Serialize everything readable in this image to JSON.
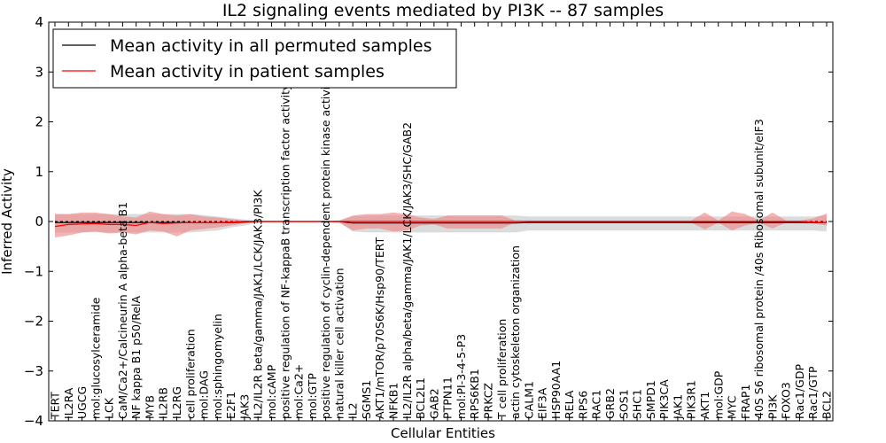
{
  "chart_data": {
    "type": "line",
    "title": "IL2 signaling events mediated by PI3K -- 87 samples",
    "xlabel": "Cellular Entities",
    "ylabel": "Inferred Activity",
    "ylim": [
      -4,
      4
    ],
    "yticks": [
      -4,
      -3,
      -2,
      -1,
      0,
      1,
      2,
      3,
      4
    ],
    "ytick_labels": [
      "−4",
      "−3",
      "−2",
      "−1",
      "0",
      "1",
      "2",
      "3",
      "4"
    ],
    "legend_position": "top-left",
    "categories": [
      "TERT",
      "IL2RA",
      "UGCG",
      "mol:glucosylceramide",
      "LCK",
      "CaM/Ca2+/Calcineurin A alpha-beta B1",
      "NF kappa B1 p50/RelA",
      "MYB",
      "IL2RB",
      "IL2RG",
      "cell proliferation",
      "mol:DAG",
      "mol:sphingomyelin",
      "E2F1",
      "JAK3",
      "IL2/IL2R beta/gamma/JAK1/LCK/JAK3/PI3K",
      "mol:cAMP",
      "positive regulation of NF-kappaB transcription factor activity",
      "mol:Ca2+",
      "mol:GTP",
      "positive regulation of cyclin-dependent protein kinase activity",
      "natural killer cell activation",
      "IL2",
      "SGMS1",
      "AKT1/mTOR/p70S6K/Hsp90/TERT",
      "NFKB1",
      "IL2/IL2R alpha/beta/gamma/JAK1/LCK/JAK3/SHC/GAB2",
      "BCL2L1",
      "GAB2",
      "PTPN11",
      "mol:PI-3-4-5-P3",
      "RPS6KB1",
      "PRKCZ",
      "T cell proliferation",
      "actin cytoskeleton organization",
      "CALM1",
      "EIF3A",
      "HSP90AA1",
      "RELA",
      "RPS6",
      "RAC1",
      "GRB2",
      "SOS1",
      "SHC1",
      "SMPD1",
      "PIK3CA",
      "JAK1",
      "PIK3R1",
      "AKT1",
      "mol:GDP",
      "MYC",
      "FRAP1",
      "40S S6 ribosomal protein /40s Ribosomal subunit/eIF3",
      "PI3K",
      "FOXO3",
      "Rac1/GDP",
      "Rac1/GTP",
      "BCL2"
    ],
    "series": [
      {
        "name": "Mean activity in all permuted samples",
        "color": "#000000",
        "band_color": "#bdbdbd",
        "values": [
          -0.02,
          -0.02,
          -0.02,
          -0.02,
          -0.02,
          -0.02,
          -0.02,
          -0.02,
          -0.02,
          -0.02,
          -0.02,
          -0.02,
          -0.02,
          -0.02,
          -0.01,
          0,
          0,
          0,
          0,
          0,
          0,
          0,
          -0.03,
          -0.03,
          -0.03,
          -0.03,
          -0.03,
          -0.03,
          -0.03,
          -0.03,
          -0.03,
          -0.03,
          -0.03,
          -0.03,
          -0.03,
          -0.02,
          -0.02,
          -0.02,
          -0.02,
          -0.02,
          -0.02,
          -0.02,
          -0.02,
          -0.02,
          -0.02,
          -0.02,
          -0.02,
          -0.02,
          -0.02,
          -0.02,
          -0.02,
          -0.02,
          -0.02,
          -0.02,
          -0.02,
          -0.02,
          -0.02,
          -0.02
        ],
        "lower": [
          -0.22,
          -0.22,
          -0.22,
          -0.22,
          -0.22,
          -0.22,
          -0.22,
          -0.22,
          -0.22,
          -0.22,
          -0.22,
          -0.2,
          -0.18,
          -0.12,
          -0.08,
          -0.02,
          -0.01,
          -0.01,
          -0.01,
          -0.01,
          -0.01,
          -0.02,
          -0.2,
          -0.22,
          -0.22,
          -0.22,
          -0.22,
          -0.22,
          -0.22,
          -0.22,
          -0.22,
          -0.22,
          -0.22,
          -0.22,
          -0.22,
          -0.18,
          -0.18,
          -0.18,
          -0.18,
          -0.18,
          -0.18,
          -0.18,
          -0.18,
          -0.18,
          -0.18,
          -0.18,
          -0.18,
          -0.18,
          -0.18,
          -0.18,
          -0.18,
          -0.18,
          -0.18,
          -0.18,
          -0.18,
          -0.18,
          -0.18,
          -0.2
        ],
        "upper": [
          0.15,
          0.15,
          0.15,
          0.15,
          0.15,
          0.15,
          0.15,
          0.15,
          0.15,
          0.15,
          0.15,
          0.13,
          0.1,
          0.07,
          0.04,
          0.02,
          0.01,
          0.01,
          0.01,
          0.01,
          0.01,
          0.02,
          0.1,
          0.12,
          0.12,
          0.12,
          0.12,
          0.12,
          0.12,
          0.12,
          0.12,
          0.12,
          0.12,
          0.12,
          0.12,
          0.1,
          0.1,
          0.1,
          0.1,
          0.1,
          0.1,
          0.1,
          0.1,
          0.1,
          0.1,
          0.1,
          0.1,
          0.1,
          0.1,
          0.1,
          0.1,
          0.1,
          0.1,
          0.1,
          0.1,
          0.1,
          0.1,
          0.12
        ]
      },
      {
        "name": "Mean activity in patient samples",
        "color": "#ff0000",
        "band_color": "#f08080",
        "values": [
          -0.1,
          -0.06,
          -0.05,
          -0.04,
          -0.06,
          -0.06,
          -0.08,
          -0.02,
          -0.04,
          -0.03,
          -0.02,
          -0.02,
          -0.02,
          -0.01,
          0,
          0,
          0,
          0,
          0,
          0,
          0,
          0,
          0,
          0,
          0,
          0,
          0,
          0,
          0,
          0,
          0,
          0,
          0,
          0,
          0,
          0,
          0,
          0,
          0,
          0,
          0,
          0,
          0,
          0,
          0,
          0,
          0,
          0,
          0,
          0,
          0,
          0,
          0,
          0,
          0,
          0,
          -0.01,
          -0.02
        ],
        "lower": [
          -0.32,
          -0.28,
          -0.22,
          -0.2,
          -0.24,
          -0.22,
          -0.26,
          -0.18,
          -0.2,
          -0.3,
          -0.18,
          -0.15,
          -0.12,
          -0.08,
          -0.04,
          -0.01,
          -0.01,
          -0.01,
          -0.01,
          -0.01,
          -0.01,
          -0.02,
          -0.18,
          -0.14,
          -0.14,
          -0.2,
          -0.18,
          -0.08,
          -0.06,
          -0.14,
          -0.14,
          -0.14,
          -0.14,
          -0.14,
          -0.02,
          -0.02,
          -0.02,
          -0.02,
          -0.02,
          -0.02,
          -0.02,
          -0.02,
          -0.02,
          -0.02,
          -0.02,
          -0.02,
          -0.02,
          -0.02,
          -0.16,
          -0.02,
          -0.18,
          -0.08,
          -0.02,
          -0.14,
          -0.02,
          -0.02,
          -0.04,
          -0.08
        ],
        "upper": [
          0.15,
          0.15,
          0.18,
          0.18,
          0.15,
          0.1,
          0.08,
          0.2,
          0.15,
          0.12,
          0.15,
          0.1,
          0.08,
          0.05,
          0.02,
          0.01,
          0.01,
          0.01,
          0.01,
          0.01,
          0.01,
          0.02,
          0.12,
          0.15,
          0.15,
          0.18,
          0.15,
          0.08,
          0.05,
          0.12,
          0.12,
          0.12,
          0.12,
          0.12,
          0.02,
          0.02,
          0.02,
          0.02,
          0.02,
          0.02,
          0.02,
          0.02,
          0.02,
          0.02,
          0.02,
          0.02,
          0.02,
          0.02,
          0.18,
          0.02,
          0.2,
          0.15,
          0.02,
          0.18,
          0.02,
          0.02,
          0.06,
          0.16
        ]
      }
    ]
  }
}
